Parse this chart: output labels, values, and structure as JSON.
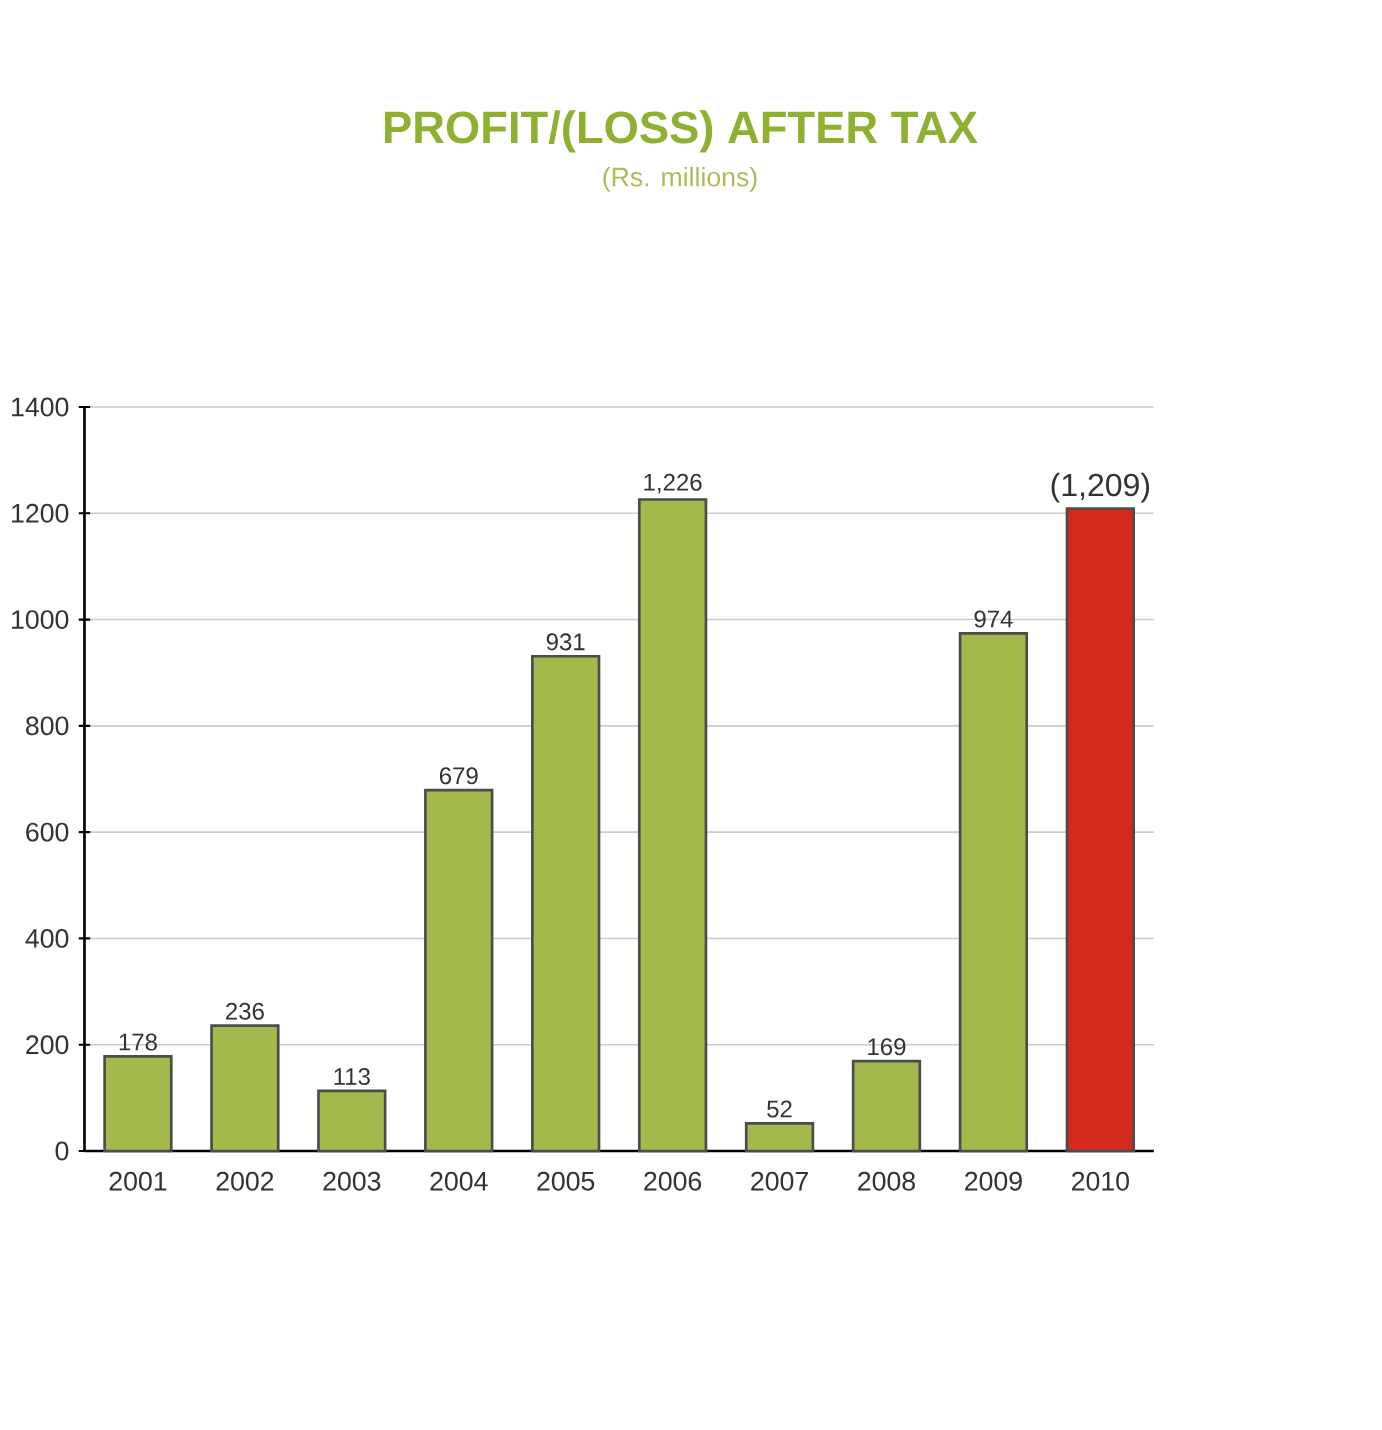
{
  "chart_data": {
    "type": "bar",
    "title": "PROFIT/(LOSS) AFTER TAX",
    "subtitle": "(Rs. millions)",
    "categories": [
      "2001",
      "2002",
      "2003",
      "2004",
      "2005",
      "2006",
      "2007",
      "2008",
      "2009",
      "2010"
    ],
    "values": [
      178,
      236,
      113,
      679,
      931,
      1226,
      52,
      169,
      974,
      1209
    ],
    "value_labels": [
      "178",
      "236",
      "113",
      "679",
      "931",
      "1,226",
      "52",
      "169",
      "974",
      "(1,209)"
    ],
    "colors": [
      "#a3b94c",
      "#a3b94c",
      "#a3b94c",
      "#a3b94c",
      "#a3b94c",
      "#a3b94c",
      "#a3b94c",
      "#a3b94c",
      "#a3b94c",
      "#d42a1e"
    ],
    "ylim": [
      0,
      1400
    ],
    "yticks": [
      0,
      200,
      400,
      600,
      800,
      1000,
      1200,
      1400
    ],
    "grid": "y"
  }
}
